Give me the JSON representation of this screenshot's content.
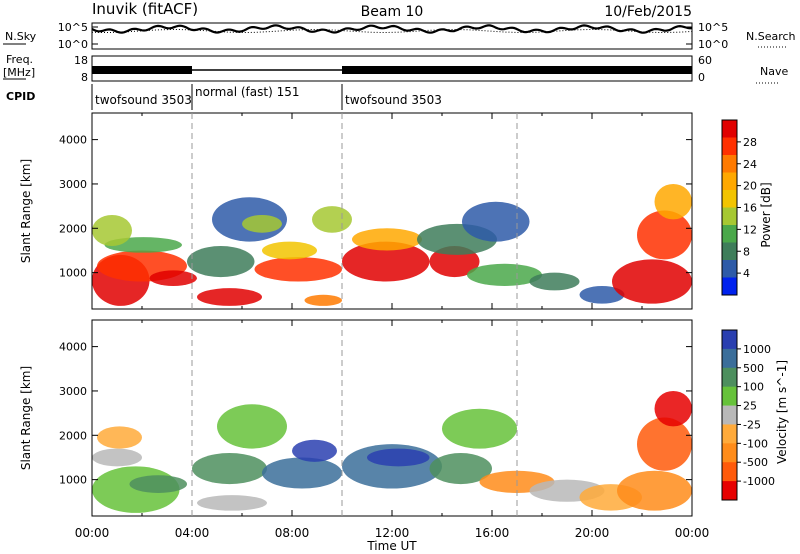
{
  "header": {
    "station": "Inuvik (fitACF)",
    "beam": "Beam 10",
    "date": "10/Feb/2015"
  },
  "noise_panel": {
    "left_label": "N.Sky",
    "right_label": "N.Search",
    "left_ticks": [
      "10^5",
      "10^0"
    ],
    "right_ticks": [
      "10^5",
      "10^0"
    ]
  },
  "freq_panel": {
    "left_label": "Freq.",
    "left_unit": "[MHz]",
    "left_ticks": [
      "18",
      "8"
    ],
    "right_label": "Nave",
    "right_ticks": [
      "60",
      "0"
    ]
  },
  "cpid": {
    "label": "CPID",
    "segments": [
      {
        "name": "twofsound 3503",
        "start": 0,
        "end": 4
      },
      {
        "name": "normal (fast) 151",
        "start": 4,
        "end": 10
      },
      {
        "name": "twofsound 3503",
        "start": 10,
        "end": 24
      }
    ]
  },
  "power_colorbar": {
    "title": "Power [dB]",
    "ticks": [
      "28",
      "24",
      "20",
      "16",
      "12",
      "8",
      "4"
    ],
    "colors": [
      "#e00000",
      "#ff3000",
      "#ff7a00",
      "#ffa800",
      "#f2c400",
      "#a6c832",
      "#4aa84a",
      "#3e7d5a",
      "#2e5ba8",
      "#0022ee"
    ]
  },
  "velocity_colorbar": {
    "title": "Velocity [m s^-1]",
    "ticks": [
      "1000",
      "500",
      "100",
      "25",
      "-25",
      "-100",
      "-500",
      "-1000"
    ],
    "colors": [
      "#2a3fb0",
      "#3b6e9a",
      "#4d8f5e",
      "#66c23a",
      "#b8b8b8",
      "#ffaa3a",
      "#ff8c1a",
      "#ff5a0a",
      "#e60000"
    ]
  },
  "chart_data": [
    {
      "type": "heatmap",
      "panel": "power",
      "ylabel": "Slant Range [km]",
      "yticks": [
        "4000",
        "3000",
        "2000",
        "1000"
      ],
      "ylim": [
        180,
        4600
      ],
      "xlim": [
        0,
        24
      ],
      "blobs": [
        {
          "t": 0.0,
          "t2": 2.3,
          "r": 250,
          "r2": 1400,
          "c": 0
        },
        {
          "t": 0.2,
          "t2": 3.8,
          "r": 800,
          "r2": 1500,
          "c": 1
        },
        {
          "t": 0.5,
          "t2": 3.6,
          "r": 1450,
          "r2": 1800,
          "c": 6
        },
        {
          "t": 0.0,
          "t2": 1.6,
          "r": 1600,
          "r2": 2300,
          "c": 5
        },
        {
          "t": 2.3,
          "t2": 4.2,
          "r": 700,
          "r2": 1050,
          "c": 0
        },
        {
          "t": 3.8,
          "t2": 6.5,
          "r": 900,
          "r2": 1600,
          "c": 7
        },
        {
          "t": 4.2,
          "t2": 6.8,
          "r": 250,
          "r2": 650,
          "c": 0
        },
        {
          "t": 4.8,
          "t2": 7.8,
          "r": 1700,
          "r2": 2700,
          "c": 8
        },
        {
          "t": 6.0,
          "t2": 7.6,
          "r": 1900,
          "r2": 2300,
          "c": 5
        },
        {
          "t": 6.5,
          "t2": 10.0,
          "r": 800,
          "r2": 1350,
          "c": 1
        },
        {
          "t": 6.8,
          "t2": 9.0,
          "r": 1300,
          "r2": 1700,
          "c": 4
        },
        {
          "t": 8.5,
          "t2": 10.0,
          "r": 250,
          "r2": 500,
          "c": 2
        },
        {
          "t": 8.8,
          "t2": 10.4,
          "r": 1900,
          "r2": 2500,
          "c": 5
        },
        {
          "t": 10.0,
          "t2": 13.5,
          "r": 800,
          "r2": 1700,
          "c": 0
        },
        {
          "t": 10.4,
          "t2": 13.2,
          "r": 1500,
          "r2": 2000,
          "c": 3
        },
        {
          "t": 13.5,
          "t2": 15.5,
          "r": 900,
          "r2": 1600,
          "c": 0
        },
        {
          "t": 13.0,
          "t2": 16.2,
          "r": 1400,
          "r2": 2100,
          "c": 7
        },
        {
          "t": 15.0,
          "t2": 18.0,
          "r": 700,
          "r2": 1200,
          "c": 6
        },
        {
          "t": 14.8,
          "t2": 17.5,
          "r": 1700,
          "r2": 2600,
          "c": 8
        },
        {
          "t": 17.5,
          "t2": 19.5,
          "r": 600,
          "r2": 1000,
          "c": 7
        },
        {
          "t": 19.5,
          "t2": 21.3,
          "r": 300,
          "r2": 700,
          "c": 8
        },
        {
          "t": 20.8,
          "t2": 24.0,
          "r": 300,
          "r2": 1300,
          "c": 0
        },
        {
          "t": 21.8,
          "t2": 24.0,
          "r": 1300,
          "r2": 2400,
          "c": 1
        },
        {
          "t": 22.5,
          "t2": 24.0,
          "r": 2200,
          "r2": 3000,
          "c": 3
        }
      ]
    },
    {
      "type": "heatmap",
      "panel": "velocity",
      "ylabel": "Slant Range [km]",
      "yticks": [
        "4000",
        "3000",
        "2000",
        "1000"
      ],
      "ylim": [
        180,
        4600
      ],
      "xlim": [
        0,
        24
      ],
      "xlabel": "Time UT",
      "xticks": [
        "00:00",
        "04:00",
        "08:00",
        "12:00",
        "16:00",
        "20:00",
        "00:00"
      ],
      "blobs": [
        {
          "t": 0.0,
          "t2": 3.5,
          "r": 250,
          "r2": 1300,
          "c": 3
        },
        {
          "t": 0.0,
          "t2": 2.0,
          "r": 1300,
          "r2": 1700,
          "c": 4
        },
        {
          "t": 1.5,
          "t2": 3.8,
          "r": 700,
          "r2": 1100,
          "c": 2
        },
        {
          "t": 0.2,
          "t2": 2.0,
          "r": 1700,
          "r2": 2200,
          "c": 5
        },
        {
          "t": 4.0,
          "t2": 7.0,
          "r": 900,
          "r2": 1600,
          "c": 2
        },
        {
          "t": 4.2,
          "t2": 7.0,
          "r": 300,
          "r2": 650,
          "c": 4
        },
        {
          "t": 5.0,
          "t2": 7.8,
          "r": 1700,
          "r2": 2700,
          "c": 3
        },
        {
          "t": 6.8,
          "t2": 10.0,
          "r": 800,
          "r2": 1500,
          "c": 1
        },
        {
          "t": 8.0,
          "t2": 9.8,
          "r": 1400,
          "r2": 1900,
          "c": 0
        },
        {
          "t": 10.0,
          "t2": 14.0,
          "r": 800,
          "r2": 1800,
          "c": 1
        },
        {
          "t": 11.0,
          "t2": 13.5,
          "r": 1300,
          "r2": 1700,
          "c": 0
        },
        {
          "t": 13.5,
          "t2": 16.0,
          "r": 900,
          "r2": 1600,
          "c": 2
        },
        {
          "t": 14.0,
          "t2": 17.0,
          "r": 1700,
          "r2": 2600,
          "c": 3
        },
        {
          "t": 15.5,
          "t2": 18.5,
          "r": 700,
          "r2": 1200,
          "c": 6
        },
        {
          "t": 17.5,
          "t2": 20.5,
          "r": 500,
          "r2": 1000,
          "c": 4
        },
        {
          "t": 19.5,
          "t2": 22.0,
          "r": 300,
          "r2": 900,
          "c": 5
        },
        {
          "t": 21.0,
          "t2": 24.0,
          "r": 300,
          "r2": 1200,
          "c": 6
        },
        {
          "t": 21.8,
          "t2": 24.0,
          "r": 1200,
          "r2": 2400,
          "c": 7
        },
        {
          "t": 22.5,
          "t2": 24.0,
          "r": 2200,
          "r2": 3000,
          "c": 8
        }
      ]
    }
  ]
}
